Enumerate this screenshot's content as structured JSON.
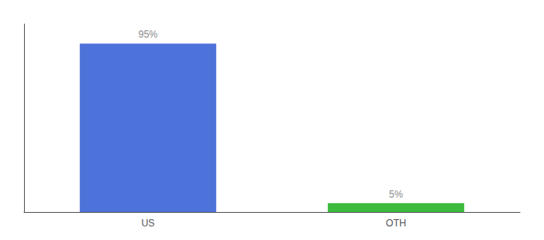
{
  "chart_data": {
    "type": "bar",
    "categories": [
      "US",
      "OTH"
    ],
    "values": [
      95,
      5
    ],
    "value_labels": [
      "95%",
      "5%"
    ],
    "colors": [
      "#4d72d9",
      "#3dbb3d"
    ],
    "ylim": [
      0,
      106
    ],
    "data_labels": true,
    "tick_labels": "x",
    "grid": false
  }
}
